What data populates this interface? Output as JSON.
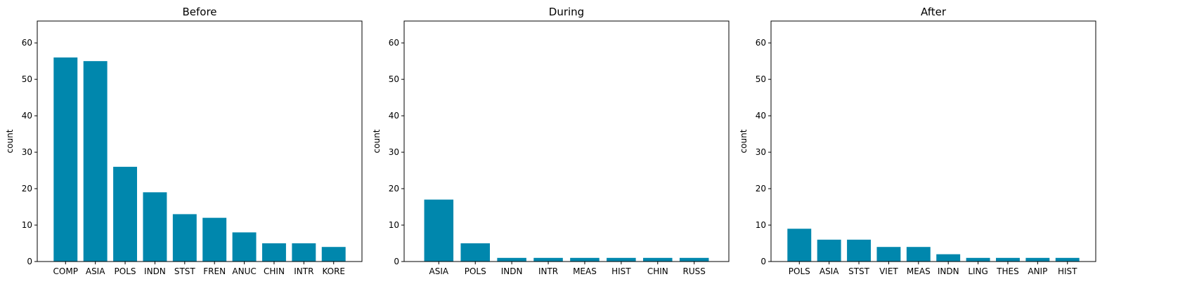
{
  "bar_color": "#0087ad",
  "chart_data": [
    {
      "type": "bar",
      "title": "Before",
      "ylabel": "count",
      "xlabel": "",
      "ylim": [
        0,
        66
      ],
      "yticks": [
        0,
        10,
        20,
        30,
        40,
        50,
        60
      ],
      "grid": false,
      "categories": [
        "COMP",
        "ASIA",
        "POLS",
        "INDN",
        "STST",
        "FREN",
        "ANUC",
        "CHIN",
        "INTR",
        "KORE"
      ],
      "values": [
        56,
        55,
        26,
        19,
        13,
        12,
        8,
        5,
        5,
        4
      ]
    },
    {
      "type": "bar",
      "title": "During",
      "ylabel": "count",
      "xlabel": "",
      "ylim": [
        0,
        66
      ],
      "yticks": [
        0,
        10,
        20,
        30,
        40,
        50,
        60
      ],
      "grid": false,
      "categories": [
        "ASIA",
        "POLS",
        "INDN",
        "INTR",
        "MEAS",
        "HIST",
        "CHIN",
        "RUSS"
      ],
      "values": [
        17,
        5,
        1,
        1,
        1,
        1,
        1,
        1
      ]
    },
    {
      "type": "bar",
      "title": "After",
      "ylabel": "count",
      "xlabel": "",
      "ylim": [
        0,
        66
      ],
      "yticks": [
        0,
        10,
        20,
        30,
        40,
        50,
        60
      ],
      "grid": false,
      "categories": [
        "POLS",
        "ASIA",
        "STST",
        "VIET",
        "MEAS",
        "INDN",
        "LING",
        "THES",
        "ANIP",
        "HIST"
      ],
      "values": [
        9,
        6,
        6,
        4,
        4,
        2,
        1,
        1,
        1,
        1
      ]
    }
  ]
}
